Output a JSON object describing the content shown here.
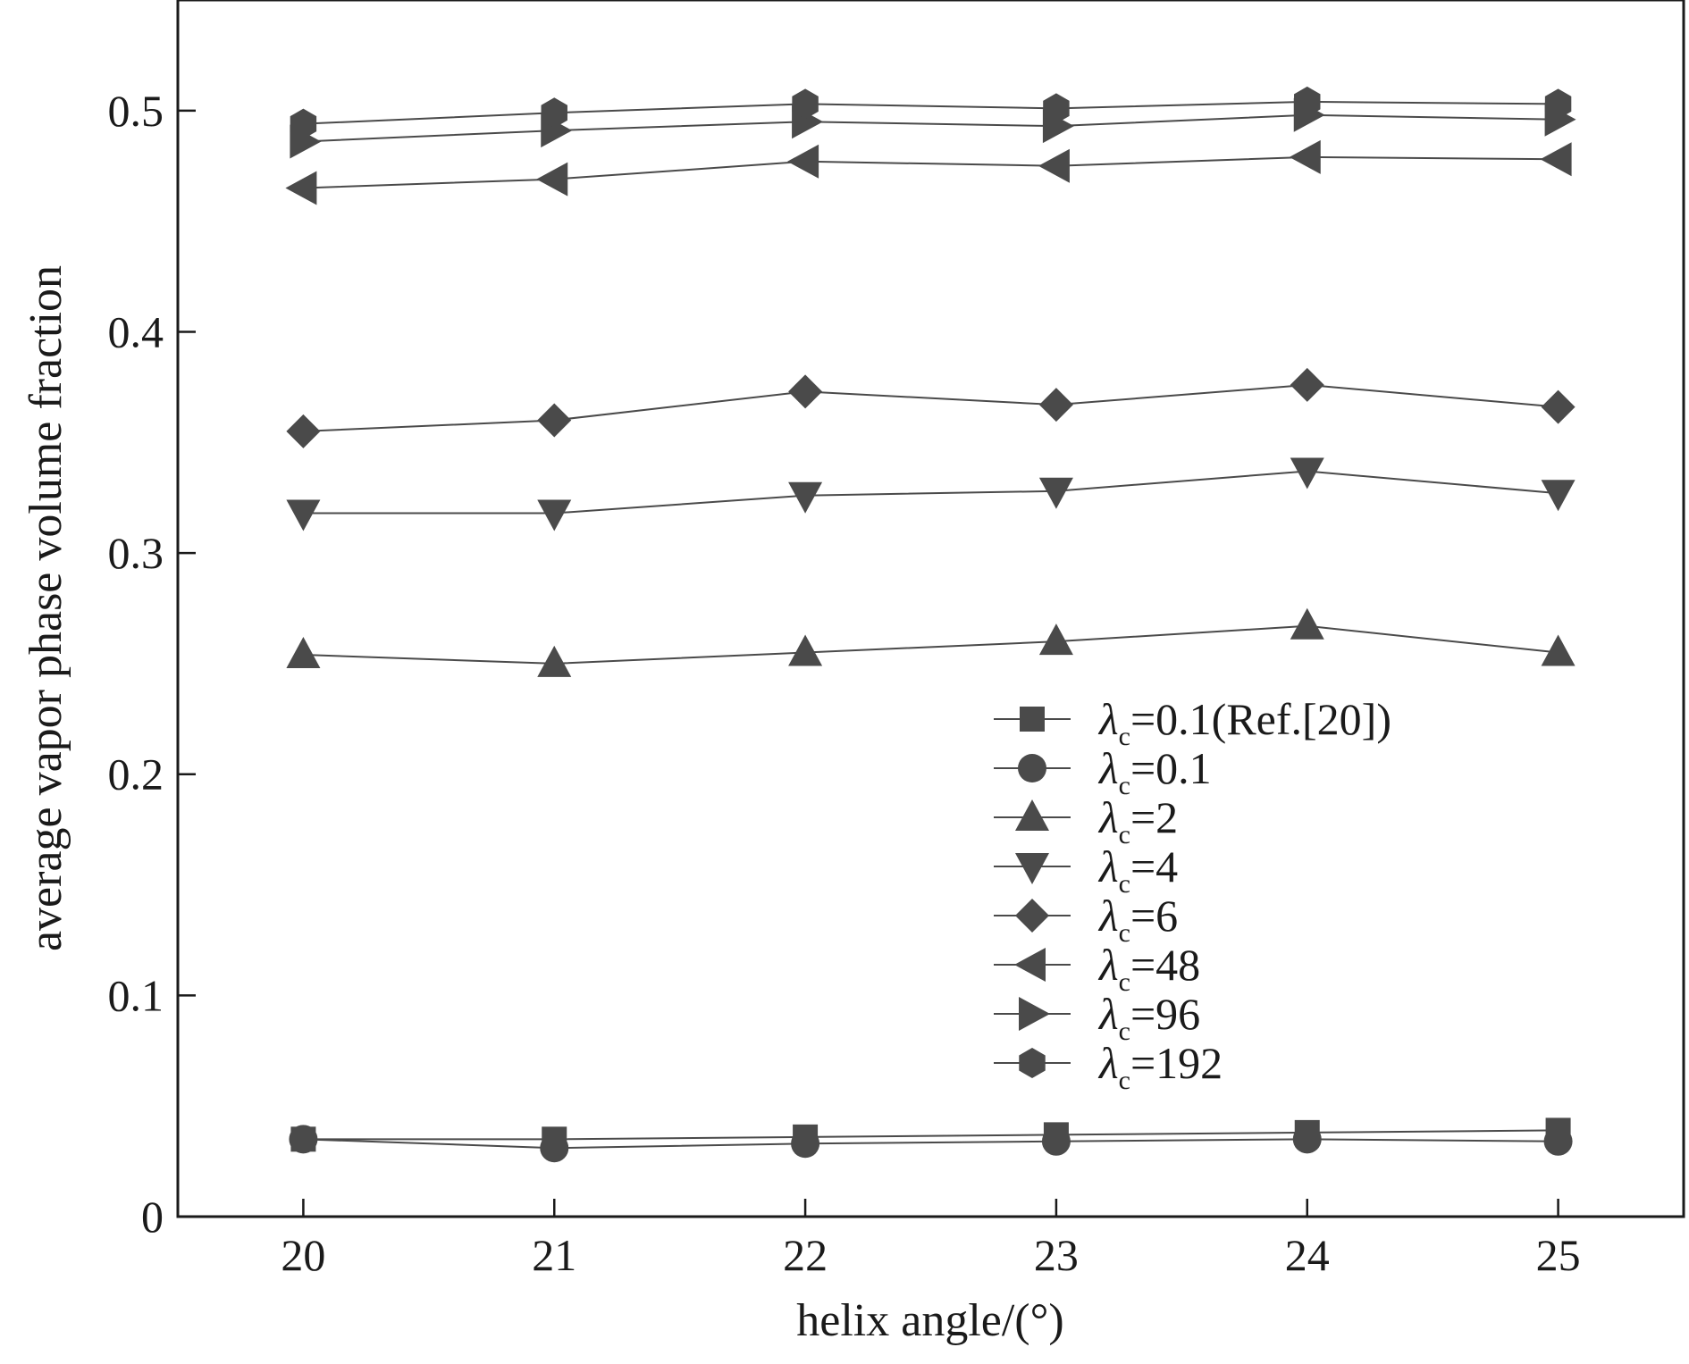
{
  "chart_data": {
    "type": "line",
    "xlabel": "helix angle/(°)",
    "ylabel": "average vapor phase volume fraction",
    "x": [
      20,
      21,
      22,
      23,
      24,
      25
    ],
    "xticks": [
      "20",
      "21",
      "22",
      "23",
      "24",
      "25"
    ],
    "xlim": [
      19.5,
      25.5
    ],
    "ylim": [
      0,
      0.55
    ],
    "yticks": [
      "0",
      "0.1",
      "0.2",
      "0.3",
      "0.4",
      "0.5"
    ],
    "ytick_values": [
      0,
      0.1,
      0.2,
      0.3,
      0.4,
      0.5
    ],
    "grid": false,
    "legend_position": "lower-right",
    "colors": {
      "series": "#4a4a4a",
      "axis": "#1a1a1a"
    },
    "series": [
      {
        "symbol": "λ",
        "subscript": "c",
        "suffix": "=0.1(Ref.[20])",
        "marker": "square",
        "values": [
          0.035,
          0.035,
          0.036,
          0.037,
          0.038,
          0.039
        ]
      },
      {
        "symbol": "λ",
        "subscript": "c",
        "suffix": "=0.1",
        "marker": "circle",
        "values": [
          0.035,
          0.031,
          0.033,
          0.034,
          0.035,
          0.034
        ]
      },
      {
        "symbol": "λ",
        "subscript": "c",
        "suffix": "=2",
        "marker": "triangle-up",
        "values": [
          0.254,
          0.25,
          0.255,
          0.26,
          0.267,
          0.255
        ]
      },
      {
        "symbol": "λ",
        "subscript": "c",
        "suffix": "=4",
        "marker": "triangle-down",
        "values": [
          0.318,
          0.318,
          0.326,
          0.328,
          0.337,
          0.327
        ]
      },
      {
        "symbol": "λ",
        "subscript": "c",
        "suffix": "=6",
        "marker": "diamond",
        "values": [
          0.355,
          0.36,
          0.373,
          0.367,
          0.376,
          0.366
        ]
      },
      {
        "symbol": "λ",
        "subscript": "c",
        "suffix": "=48",
        "marker": "triangle-left",
        "values": [
          0.465,
          0.469,
          0.477,
          0.475,
          0.479,
          0.478
        ]
      },
      {
        "symbol": "λ",
        "subscript": "c",
        "suffix": "=96",
        "marker": "triangle-right",
        "values": [
          0.486,
          0.491,
          0.495,
          0.493,
          0.498,
          0.496
        ]
      },
      {
        "symbol": "λ",
        "subscript": "c",
        "suffix": "=192",
        "marker": "hexagon",
        "values": [
          0.494,
          0.499,
          0.503,
          0.501,
          0.504,
          0.503
        ]
      }
    ]
  }
}
